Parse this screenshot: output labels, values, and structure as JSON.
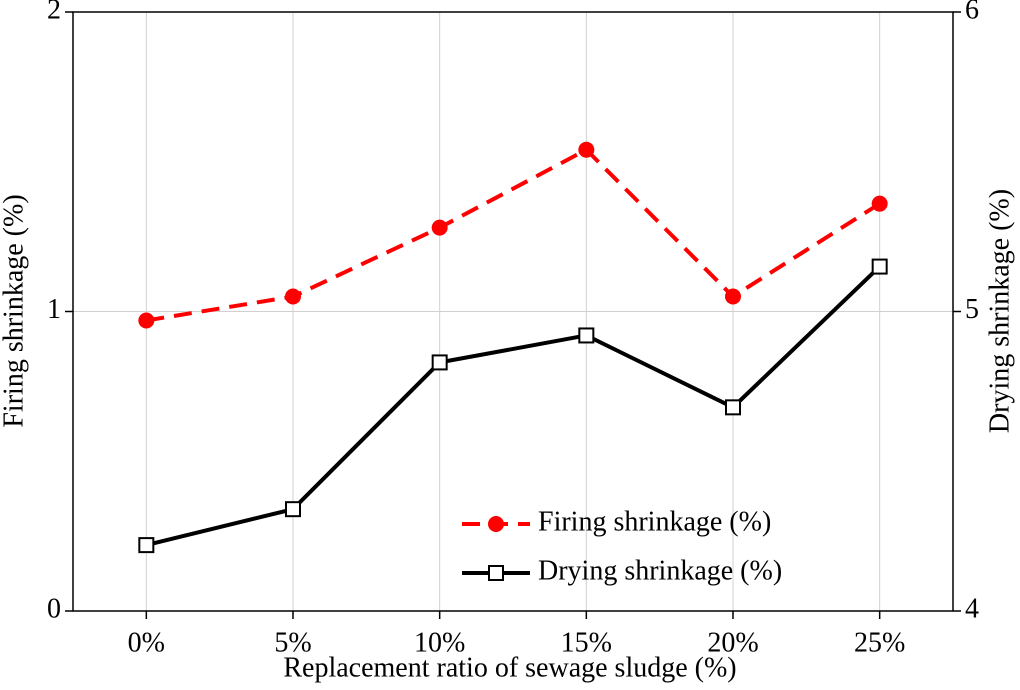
{
  "chart_data": {
    "type": "line",
    "xlabel": "Replacement ratio of sewage sludge (%)",
    "ylabel": "Firing shrinkage (%)",
    "y2label": "Drying shrinkage (%)",
    "categories": [
      "0%",
      "5%",
      "10%",
      "15%",
      "20%",
      "25%"
    ],
    "series": [
      {
        "name": "Firing shrinkage (%)",
        "color": "#ff0000",
        "marker": "circle",
        "dash": true,
        "values": [
          0.97,
          1.05,
          1.28,
          1.54,
          1.05,
          1.36
        ]
      },
      {
        "name": "Drying shrinkage (%)",
        "color": "#000000",
        "marker": "square",
        "dash": false,
        "axis": "y2",
        "values": [
          4.22,
          4.34,
          4.83,
          4.92,
          4.68,
          5.15
        ]
      }
    ],
    "ylim": [
      0,
      2
    ],
    "yticks": [
      0,
      1,
      2
    ],
    "y2lim": [
      4,
      6
    ],
    "y2ticks": [
      4,
      5,
      6
    ],
    "grid": true,
    "legend": "lower right"
  }
}
